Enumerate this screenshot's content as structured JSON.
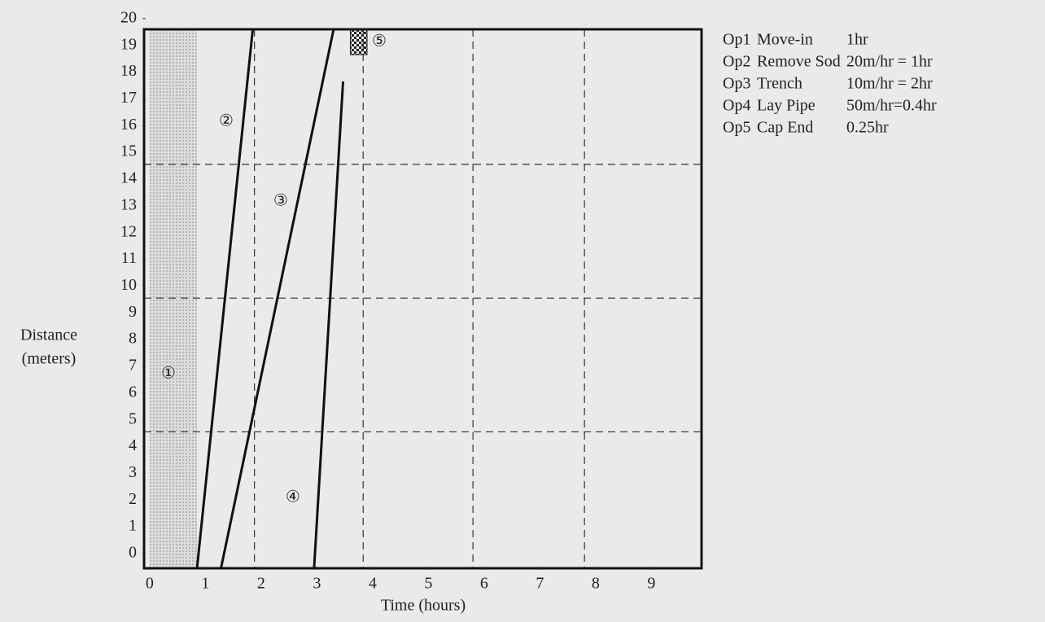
{
  "chart_data": {
    "type": "line",
    "xlabel": "Time (hours)",
    "ylabel": [
      "Distance",
      "(meters)"
    ],
    "xlim": [
      -0.1,
      9.9
    ],
    "ylim": [
      -0.55,
      19.6
    ],
    "xticks": [
      0,
      1,
      2,
      3,
      4,
      5,
      6,
      7,
      8,
      9
    ],
    "yticks": [
      0,
      1,
      2,
      3,
      4,
      5,
      6,
      7,
      8,
      9,
      10,
      11,
      12,
      13,
      14,
      15,
      16,
      17,
      18,
      19,
      20
    ],
    "xgrid": [
      1.88,
      3.83,
      5.8,
      7.8
    ],
    "ygrid": [
      4.55,
      9.55,
      14.55
    ],
    "series": [
      {
        "name": "Op1",
        "marker": "①",
        "kind": "band",
        "x": [
          0,
          0.85
        ],
        "y": [
          -0.55,
          19.6
        ]
      },
      {
        "name": "Op2",
        "marker": "②",
        "kind": "line",
        "x": [
          0.85,
          1.85
        ],
        "y": [
          -0.55,
          19.6
        ]
      },
      {
        "name": "Op3",
        "marker": "③",
        "kind": "line",
        "x": [
          1.28,
          3.3
        ],
        "y": [
          -0.55,
          19.6
        ]
      },
      {
        "name": "Op4",
        "marker": "④",
        "kind": "line",
        "x": [
          2.95,
          3.47
        ],
        "y": [
          -0.55,
          17.65
        ]
      },
      {
        "name": "Op5",
        "marker": "⑤",
        "kind": "block",
        "x": [
          3.6,
          3.9
        ],
        "y": [
          18.65,
          19.6
        ]
      }
    ],
    "legend": [
      [
        "Op1",
        "Move-in",
        "1hr"
      ],
      [
        "Op2",
        "Remove Sod",
        "20m/hr = 1hr"
      ],
      [
        "Op3",
        "Trench",
        "10m/hr = 2hr"
      ],
      [
        "Op4",
        "Lay Pipe",
        "50m/hr=0.4hr"
      ],
      [
        "Op5",
        "Cap End",
        "0.25hr"
      ]
    ]
  }
}
